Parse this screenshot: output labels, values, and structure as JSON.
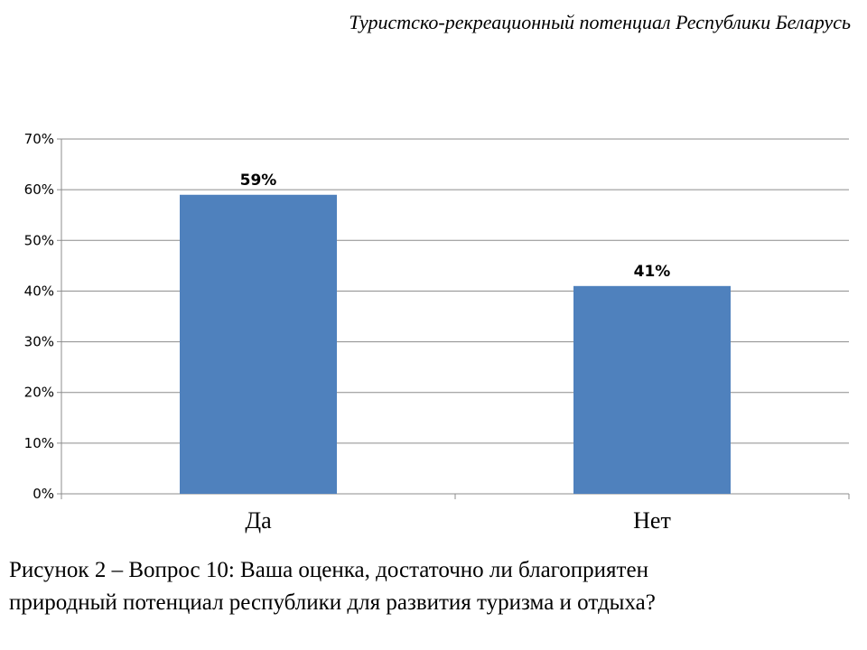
{
  "header": {
    "title": "Туристско-рекреационный потенциал Республики Беларусь"
  },
  "chart_data": {
    "type": "bar",
    "categories": [
      "Да",
      "Нет"
    ],
    "values": [
      59,
      41
    ],
    "data_labels": [
      "59%",
      "41%"
    ],
    "ylim": [
      0,
      70
    ],
    "yticks": [
      0,
      10,
      20,
      30,
      40,
      50,
      60,
      70
    ],
    "ytick_labels": [
      "0%",
      "10%",
      "20%",
      "30%",
      "40%",
      "50%",
      "60%",
      "70%"
    ],
    "grid": true,
    "bar_color": "#4F81BD",
    "grid_color": "#8C8C8C"
  },
  "caption": {
    "line1": "Рисунок 2 – Вопрос 10: Ваша оценка, достаточно ли благоприятен",
    "line2": "природный потенциал республики для развития туризма и отдыха?"
  }
}
